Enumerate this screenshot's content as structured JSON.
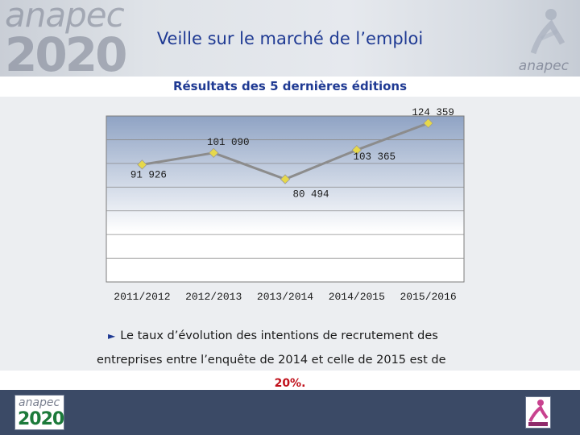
{
  "header": {
    "logo_word": "anapec",
    "logo_year": "2020",
    "brand_sub": "anapec",
    "title": "Veille sur le marché de l’emploi"
  },
  "subtitle": "Résultats des 5 dernières éditions",
  "chart_data": {
    "type": "line",
    "title": "",
    "xlabel": "",
    "ylabel": "",
    "categories": [
      "2011/2012",
      "2012/2013",
      "2013/2014",
      "2014/2015",
      "2015/2016"
    ],
    "values": [
      91926,
      101090,
      80494,
      103365,
      124359
    ],
    "data_labels": [
      "91 926",
      "101 090",
      "80 494",
      "103 365",
      "124 359"
    ],
    "ylim": [
      0,
      130000
    ],
    "grid": true,
    "legend": "none",
    "colors": {
      "line": "#8c8c8c",
      "marker": "#e6d84a",
      "plot_bg_top": "#8fa3c4",
      "plot_bg_bottom": "#ffffff"
    }
  },
  "note": {
    "bullet": "►",
    "line1": "Le taux d’évolution des intentions de recrutement des",
    "line2": "entreprises entre l’enquête de 2014 et celle de 2015 est de"
  },
  "highlight": "20%.",
  "footer": {
    "logo_word": "anapec",
    "logo_year": "2020"
  }
}
